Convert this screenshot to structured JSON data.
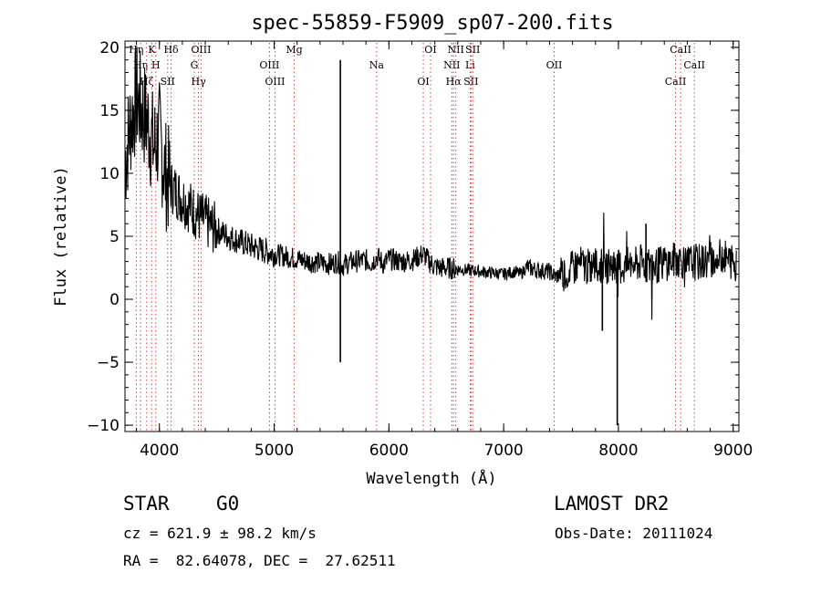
{
  "chart_data": {
    "type": "line",
    "title": "spec-55859-F5909_sp07-200.fits",
    "xlabel": "Wavelength (Å)",
    "ylabel": "Flux (relative)",
    "xlim": [
      3700,
      9050
    ],
    "ylim": [
      -10.5,
      20.5
    ],
    "x_ticks": [
      4000,
      5000,
      6000,
      7000,
      8000,
      9000
    ],
    "y_ticks": [
      -10,
      -5,
      0,
      5,
      10,
      15,
      20
    ],
    "series": [
      {
        "x": [
          3700,
          3750,
          3800,
          3850,
          3900,
          3950,
          4000,
          4050,
          4100,
          4150,
          4200,
          4250,
          4300,
          4350,
          4400,
          4450,
          4500,
          4600,
          4700,
          4800,
          4900,
          5000,
          5100,
          5200,
          5300,
          5400,
          5500,
          5550,
          5600,
          5650,
          5700,
          5800,
          5850,
          5900,
          5950,
          6000,
          6100,
          6200,
          6300,
          6350,
          6400,
          6450,
          6500,
          6600,
          6700,
          6800,
          6900,
          7000,
          7100,
          7150,
          7200,
          7250,
          7300,
          7400,
          7450,
          7500,
          7550,
          7600,
          7650,
          7700,
          7750,
          7800,
          7850,
          7900,
          7950,
          8000,
          8050,
          8100,
          8150,
          8200,
          8300,
          8350,
          8400,
          8450,
          8500,
          8550,
          8600,
          8650,
          8700,
          8750,
          8800,
          8850,
          8900,
          8950,
          9000,
          9030
        ],
        "y": [
          11,
          14,
          16,
          15,
          14,
          12,
          13,
          10,
          9,
          8.5,
          8,
          7.5,
          7,
          6.5,
          6.2,
          5.8,
          5.5,
          5,
          4.6,
          4.2,
          3.9,
          3.6,
          3.4,
          3.2,
          3,
          2.9,
          2.8,
          3,
          2.7,
          2.9,
          3,
          3.1,
          2.9,
          3.4,
          2.8,
          3.2,
          3,
          3.1,
          3.6,
          3,
          2.6,
          2.5,
          2.5,
          2.4,
          2.3,
          2.2,
          2.1,
          2.0,
          2.2,
          2.0,
          2.6,
          2.4,
          2.3,
          2.2,
          1.8,
          2.0,
          2.2,
          2.4,
          2.8,
          2.7,
          2.5,
          2.8,
          2.6,
          2.7,
          2.8,
          2.6,
          2.5,
          2.8,
          2.7,
          2.9,
          2.6,
          2.7,
          3.0,
          2.9,
          3.2,
          3.1,
          2.8,
          3.0,
          2.9,
          3.0,
          3.2,
          2.9,
          3.6,
          3.1,
          3.0,
          2.5
        ]
      }
    ],
    "features": [
      {
        "x": 5577,
        "y": 19,
        "y2": -5
      },
      {
        "x": 7990,
        "y": -10,
        "y2": 3
      },
      {
        "x": 7860,
        "y": -2.5,
        "y2": 3
      },
      {
        "x": 8240,
        "y": 6,
        "y2": 2
      }
    ],
    "lines": [
      {
        "x": 3798,
        "label": "Hη"
      },
      {
        "x": 3835,
        "label": "Hη"
      },
      {
        "x": 3889,
        "label": "Hζ"
      },
      {
        "x": 3933,
        "label": "K"
      },
      {
        "x": 3969,
        "label": "H"
      },
      {
        "x": 4072,
        "label": "SII"
      },
      {
        "x": 4102,
        "label": "Hδ"
      },
      {
        "x": 4304,
        "label": "G"
      },
      {
        "x": 4341,
        "label": "Hγ"
      },
      {
        "x": 4363,
        "label": "OIII"
      },
      {
        "x": 4959,
        "label": "OIII"
      },
      {
        "x": 5007,
        "label": "OIII"
      },
      {
        "x": 5175,
        "label": "Mg"
      },
      {
        "x": 5893,
        "label": "Na"
      },
      {
        "x": 6300,
        "label": "OI"
      },
      {
        "x": 6363,
        "label": "OI"
      },
      {
        "x": 6548,
        "label": "NII"
      },
      {
        "x": 6563,
        "label": "Hα"
      },
      {
        "x": 6583,
        "label": "NII"
      },
      {
        "x": 6708,
        "label": "Li"
      },
      {
        "x": 6716,
        "label": "SII"
      },
      {
        "x": 6731,
        "label": "SII"
      },
      {
        "x": 7440,
        "label": "OII"
      },
      {
        "x": 8498,
        "label": "CaII"
      },
      {
        "x": 8542,
        "label": "CaII"
      },
      {
        "x": 8662,
        "label": "CaII"
      }
    ]
  },
  "info": {
    "obj_class": "STAR",
    "subclass": "G0",
    "survey": "LAMOST DR2",
    "cz": "cz = 621.9 ± 98.2 km/s",
    "obs_date": "Obs-Date: 20111024",
    "coords": "RA =  82.64078, DEC =  27.62511"
  }
}
